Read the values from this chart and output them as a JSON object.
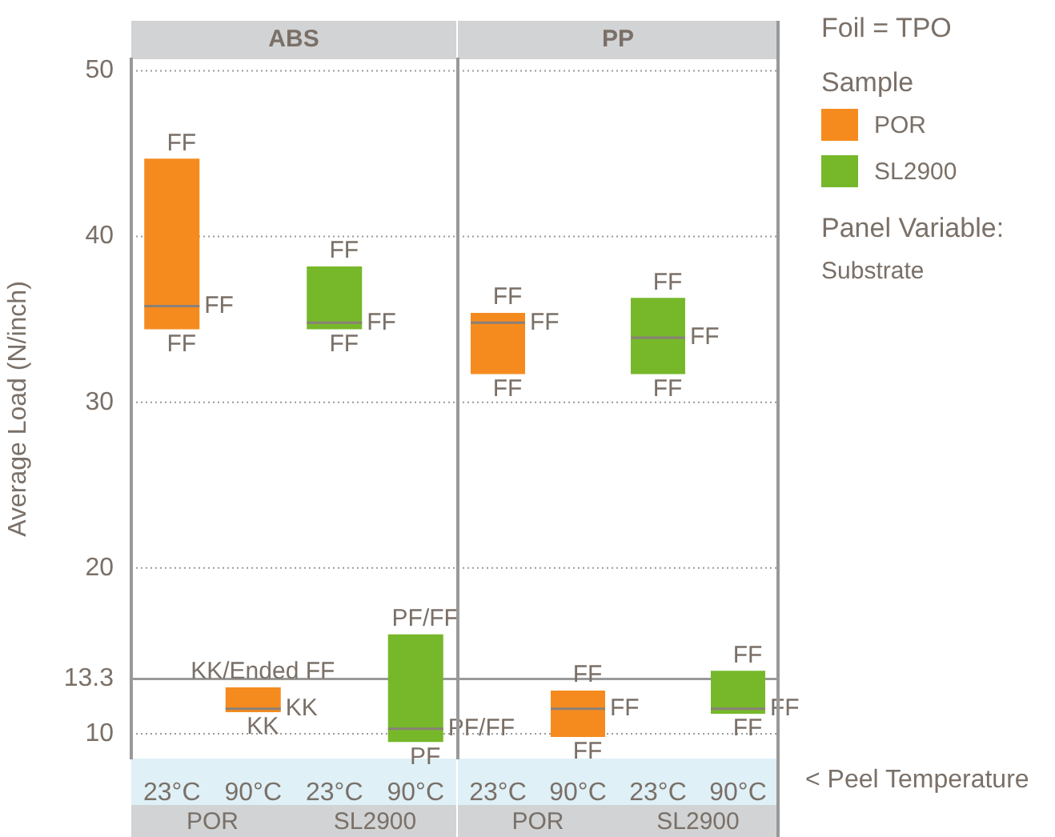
{
  "chart_data": [
    {
      "type": "box",
      "title": "ABS",
      "ylabel": "Average Load (N/inch)",
      "categories": [
        "23°C",
        "90°C",
        "23°C",
        "90°C"
      ],
      "series": [
        {
          "color": "#f58b1f",
          "boxes": [
            {
              "low": 34.4,
              "q1": 34.4,
              "median": 35.8,
              "q3": 44.7,
              "high": 44.7
            },
            {
              "low": 11.3,
              "q1": 11.3,
              "median": 11.5,
              "q3": 12.8,
              "high": 12.8
            },
            null,
            null
          ]
        },
        {
          "color": "#76b82a",
          "boxes": [
            null,
            null,
            {
              "low": 34.4,
              "q1": 34.4,
              "median": 34.8,
              "q3": 38.2,
              "high": 38.2
            },
            {
              "low": 9.5,
              "q1": 9.5,
              "median": 10.3,
              "q3": 16.0,
              "high": 16.0
            }
          ]
        }
      ],
      "ylim": [
        8.5,
        50.7
      ],
      "yticks": [
        10,
        13.3,
        20,
        30,
        40,
        50
      ],
      "grid": "y",
      "legend": false,
      "ref_lines": [
        {
          "axis": "y",
          "value": 13.3,
          "color": "#999999"
        }
      ],
      "annotations": [
        "FF",
        "FF",
        "FF",
        "KK/Ended FF",
        "KK",
        "KK",
        "FF",
        "FF",
        "FF",
        "PF/FF",
        "PF/FF",
        "PF",
        "POR",
        "SL2900"
      ]
    },
    {
      "type": "box",
      "title": "PP",
      "categories": [
        "23°C",
        "90°C",
        "23°C",
        "90°C"
      ],
      "series": [
        {
          "name": "POR",
          "color": "#f58b1f",
          "boxes": [
            {
              "low": 31.7,
              "q1": 31.7,
              "median": 34.8,
              "q3": 35.4,
              "high": 35.4
            },
            {
              "low": 9.8,
              "q1": 9.8,
              "median": 11.5,
              "q3": 12.6,
              "high": 12.6
            },
            null,
            null
          ]
        },
        {
          "name": "SL2900",
          "color": "#76b82a",
          "boxes": [
            null,
            null,
            {
              "low": 31.7,
              "q1": 31.7,
              "median": 33.9,
              "q3": 36.3,
              "high": 36.3
            },
            {
              "low": 11.2,
              "q1": 11.2,
              "median": 11.5,
              "q3": 13.8,
              "high": 13.8
            }
          ]
        }
      ],
      "ylim": [
        8.5,
        50.7
      ],
      "yticks": [
        10,
        13.3,
        20,
        30,
        40,
        50
      ],
      "grid": "y",
      "tick_labels": "x",
      "legend": "right",
      "legend_title": "Sample",
      "ref_lines": [
        {
          "axis": "y",
          "value": 13.3,
          "color": "#999999"
        }
      ],
      "annotations": [
        "FF",
        "FF",
        "FF",
        "FF",
        "FF",
        "FF",
        "FF",
        "FF",
        "FF",
        "FF",
        "FF",
        "FF",
        "< Peel Temperature"
      ]
    },
    {
      "type": "other",
      "title": "Foil = TPO",
      "annotations": [
        "Panel Variable:",
        "Substrate"
      ]
    }
  ]
}
